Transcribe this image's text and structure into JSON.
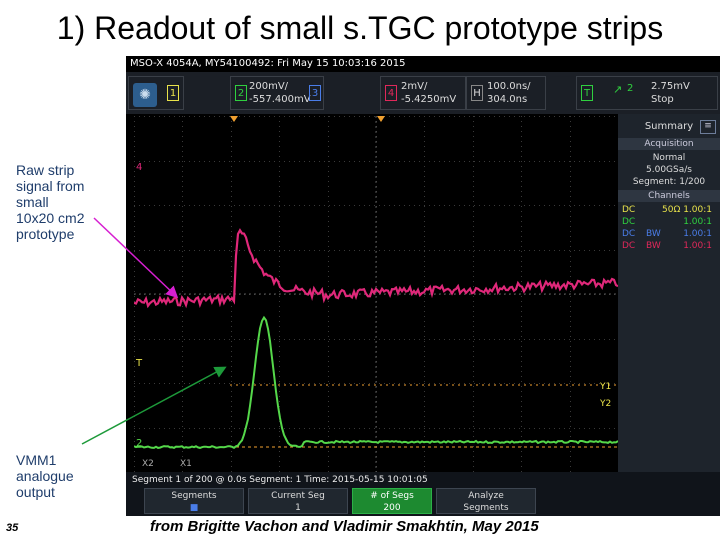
{
  "slide": {
    "title": "1) Readout of small s.TGC prototype strips",
    "left_note_1": [
      "Raw strip",
      "signal from",
      "small",
      "10x20 cm2",
      "prototype"
    ],
    "left_note_2": [
      "VMM1",
      "analogue",
      "output"
    ],
    "footer": "from Brigitte Vachon and Vladimir Smakhtin, May 2015",
    "page_number": "35"
  },
  "scope": {
    "header": "MSO-X 4054A, MY54100492: Fri May 15 10:03:16 2015",
    "channels": [
      {
        "num": "1",
        "color": "#e8e24a",
        "val1": "",
        "val2": ""
      },
      {
        "num": "2",
        "color": "#2fd03f",
        "val1": "200mV/",
        "val2": "-557.400mV"
      },
      {
        "num": "3",
        "color": "#4a7de8",
        "val1": "",
        "val2": ""
      },
      {
        "num": "4",
        "color": "#e0285a",
        "val1": "2mV/",
        "val2": "-5.4250mV"
      }
    ],
    "timebase": {
      "label": "H",
      "val1": "100.0ns/",
      "val2": "304.0ns"
    },
    "trigger": {
      "val1": "2.75mV",
      "val2": "Stop"
    },
    "side": {
      "summary": "Summary",
      "acquisition": "Acquisition",
      "acq_mode": "Normal",
      "sample_rate": "5.00GSa/s",
      "segment": "Segment: 1/200",
      "channels_head": "Channels",
      "ch_rows": [
        {
          "name": "DC",
          "extra": "50Ω",
          "val": "1.00:1",
          "color": "#e8e24a"
        },
        {
          "name": "DC",
          "extra": "",
          "val": "1.00:1",
          "color": "#2fd03f"
        },
        {
          "name": "DC",
          "extra": "BW",
          "val": "1.00:1",
          "color": "#4a7de8"
        },
        {
          "name": "DC",
          "extra": "BW",
          "val": "1.00:1",
          "color": "#e0285a"
        }
      ]
    },
    "segment_readout": "Segment 1 of 200 @ 0.0s     Segment: 1  Time: 2015-05-15 10:01:05",
    "buttons": [
      {
        "label": "Segments",
        "sub": "■"
      },
      {
        "label": "Current Seg",
        "sub": "1"
      },
      {
        "label": "# of Segs",
        "sub": "200"
      },
      {
        "label": "Analyze",
        "sub": "Segments"
      }
    ],
    "markers": {
      "x2": "X2",
      "x1": "X1",
      "y1": "Y1",
      "y2": "Y2"
    }
  },
  "colors": {
    "pink_trace": "#e0287a",
    "green_trace": "#55d84a",
    "arrow_pink": "#d61fd0",
    "arrow_green": "#1d9a3a"
  }
}
